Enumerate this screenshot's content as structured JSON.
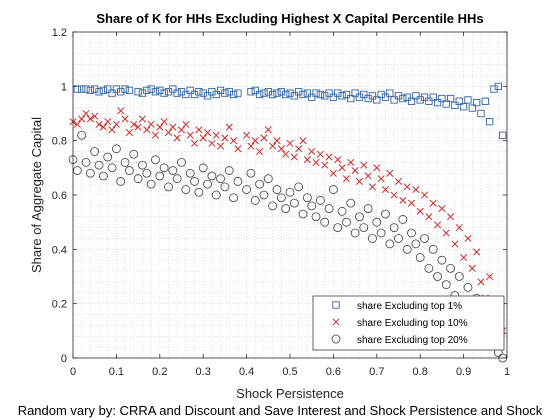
{
  "chart_data": {
    "type": "scatter",
    "title": "Share of K for HHs Excluding Highest X Capital Percentile HHs",
    "xlabel": "Shock Persistence",
    "ylabel": "Share of Aggregate Capital",
    "footnote": "Random vary by: CRRA and Discount and Save Interest and Shock Persistence and Shock",
    "xlim": [
      0,
      1
    ],
    "ylim": [
      0,
      1.2
    ],
    "x_ticks": [
      "0",
      "0.1",
      "0.2",
      "0.3",
      "0.4",
      "0.5",
      "0.6",
      "0.7",
      "0.8",
      "0.9",
      "1"
    ],
    "y_ticks": [
      "0",
      "0.2",
      "0.4",
      "0.6",
      "0.8",
      "1",
      "1.2"
    ],
    "grid": "minor dotted",
    "legend_position": "bottom-right",
    "series": [
      {
        "name": "share Excluding top 1%",
        "marker": "square",
        "color": "#3465a4",
        "points": [
          [
            0.01,
            0.99
          ],
          [
            0.02,
            0.99
          ],
          [
            0.03,
            0.99
          ],
          [
            0.04,
            0.985
          ],
          [
            0.05,
            0.99
          ],
          [
            0.06,
            0.98
          ],
          [
            0.07,
            0.985
          ],
          [
            0.08,
            0.99
          ],
          [
            0.09,
            0.975
          ],
          [
            0.1,
            0.99
          ],
          [
            0.11,
            0.98
          ],
          [
            0.12,
            0.99
          ],
          [
            0.13,
            0.985
          ],
          [
            0.15,
            0.98
          ],
          [
            0.16,
            0.975
          ],
          [
            0.17,
            0.985
          ],
          [
            0.18,
            0.99
          ],
          [
            0.19,
            0.98
          ],
          [
            0.2,
            0.985
          ],
          [
            0.21,
            0.975
          ],
          [
            0.22,
            0.98
          ],
          [
            0.23,
            0.99
          ],
          [
            0.24,
            0.975
          ],
          [
            0.25,
            0.98
          ],
          [
            0.26,
            0.97
          ],
          [
            0.27,
            0.985
          ],
          [
            0.28,
            0.97
          ],
          [
            0.29,
            0.98
          ],
          [
            0.3,
            0.975
          ],
          [
            0.31,
            0.965
          ],
          [
            0.32,
            0.98
          ],
          [
            0.33,
            0.97
          ],
          [
            0.34,
            0.985
          ],
          [
            0.35,
            0.975
          ],
          [
            0.36,
            0.98
          ],
          [
            0.37,
            0.97
          ],
          [
            0.38,
            0.975
          ],
          [
            0.41,
            0.98
          ],
          [
            0.42,
            0.985
          ],
          [
            0.43,
            0.97
          ],
          [
            0.44,
            0.975
          ],
          [
            0.45,
            0.98
          ],
          [
            0.46,
            0.97
          ],
          [
            0.47,
            0.975
          ],
          [
            0.48,
            0.98
          ],
          [
            0.49,
            0.97
          ],
          [
            0.5,
            0.975
          ],
          [
            0.51,
            0.965
          ],
          [
            0.52,
            0.98
          ],
          [
            0.53,
            0.97
          ],
          [
            0.54,
            0.975
          ],
          [
            0.55,
            0.96
          ],
          [
            0.56,
            0.975
          ],
          [
            0.57,
            0.97
          ],
          [
            0.58,
            0.965
          ],
          [
            0.59,
            0.975
          ],
          [
            0.6,
            0.96
          ],
          [
            0.61,
            0.975
          ],
          [
            0.62,
            0.965
          ],
          [
            0.63,
            0.97
          ],
          [
            0.64,
            0.955
          ],
          [
            0.65,
            0.975
          ],
          [
            0.66,
            0.96
          ],
          [
            0.67,
            0.97
          ],
          [
            0.68,
            0.955
          ],
          [
            0.69,
            0.965
          ],
          [
            0.7,
            0.95
          ],
          [
            0.71,
            0.97
          ],
          [
            0.72,
            0.96
          ],
          [
            0.73,
            0.975
          ],
          [
            0.74,
            0.95
          ],
          [
            0.75,
            0.965
          ],
          [
            0.76,
            0.955
          ],
          [
            0.77,
            0.96
          ],
          [
            0.78,
            0.945
          ],
          [
            0.79,
            0.965
          ],
          [
            0.8,
            0.95
          ],
          [
            0.81,
            0.96
          ],
          [
            0.82,
            0.945
          ],
          [
            0.83,
            0.96
          ],
          [
            0.84,
            0.94
          ],
          [
            0.85,
            0.955
          ],
          [
            0.86,
            0.935
          ],
          [
            0.87,
            0.955
          ],
          [
            0.88,
            0.93
          ],
          [
            0.89,
            0.945
          ],
          [
            0.9,
            0.925
          ],
          [
            0.91,
            0.95
          ],
          [
            0.92,
            0.92
          ],
          [
            0.93,
            0.94
          ],
          [
            0.94,
            0.9
          ],
          [
            0.95,
            0.945
          ],
          [
            0.96,
            0.87
          ],
          [
            0.97,
            0.99
          ],
          [
            0.98,
            1.0
          ],
          [
            0.99,
            0.82
          ]
        ]
      },
      {
        "name": "share Excluding top 10%",
        "marker": "x",
        "color": "#cc2a2a",
        "points": [
          [
            0.0,
            0.87
          ],
          [
            0.01,
            0.86
          ],
          [
            0.02,
            0.88
          ],
          [
            0.03,
            0.9
          ],
          [
            0.04,
            0.88
          ],
          [
            0.05,
            0.89
          ],
          [
            0.06,
            0.86
          ],
          [
            0.07,
            0.85
          ],
          [
            0.08,
            0.87
          ],
          [
            0.09,
            0.84
          ],
          [
            0.1,
            0.86
          ],
          [
            0.11,
            0.91
          ],
          [
            0.12,
            0.88
          ],
          [
            0.13,
            0.83
          ],
          [
            0.14,
            0.86
          ],
          [
            0.15,
            0.85
          ],
          [
            0.16,
            0.88
          ],
          [
            0.17,
            0.84
          ],
          [
            0.18,
            0.86
          ],
          [
            0.19,
            0.82
          ],
          [
            0.2,
            0.85
          ],
          [
            0.21,
            0.87
          ],
          [
            0.22,
            0.83
          ],
          [
            0.23,
            0.85
          ],
          [
            0.24,
            0.81
          ],
          [
            0.25,
            0.84
          ],
          [
            0.26,
            0.86
          ],
          [
            0.27,
            0.82
          ],
          [
            0.28,
            0.79
          ],
          [
            0.29,
            0.84
          ],
          [
            0.3,
            0.81
          ],
          [
            0.31,
            0.83
          ],
          [
            0.32,
            0.79
          ],
          [
            0.33,
            0.82
          ],
          [
            0.34,
            0.78
          ],
          [
            0.35,
            0.81
          ],
          [
            0.36,
            0.85
          ],
          [
            0.37,
            0.8
          ],
          [
            0.38,
            0.77
          ],
          [
            0.4,
            0.82
          ],
          [
            0.41,
            0.78
          ],
          [
            0.42,
            0.8
          ],
          [
            0.43,
            0.76
          ],
          [
            0.44,
            0.81
          ],
          [
            0.45,
            0.84
          ],
          [
            0.46,
            0.78
          ],
          [
            0.47,
            0.8
          ],
          [
            0.48,
            0.77
          ],
          [
            0.49,
            0.75
          ],
          [
            0.5,
            0.79
          ],
          [
            0.51,
            0.74
          ],
          [
            0.52,
            0.77
          ],
          [
            0.53,
            0.8
          ],
          [
            0.54,
            0.73
          ],
          [
            0.55,
            0.76
          ],
          [
            0.56,
            0.72
          ],
          [
            0.57,
            0.75
          ],
          [
            0.58,
            0.71
          ],
          [
            0.59,
            0.74
          ],
          [
            0.6,
            0.68
          ],
          [
            0.61,
            0.73
          ],
          [
            0.62,
            0.7
          ],
          [
            0.63,
            0.66
          ],
          [
            0.64,
            0.72
          ],
          [
            0.65,
            0.69
          ],
          [
            0.66,
            0.65
          ],
          [
            0.67,
            0.71
          ],
          [
            0.68,
            0.67
          ],
          [
            0.69,
            0.63
          ],
          [
            0.7,
            0.7
          ],
          [
            0.71,
            0.66
          ],
          [
            0.72,
            0.62
          ],
          [
            0.73,
            0.68
          ],
          [
            0.74,
            0.6
          ],
          [
            0.75,
            0.65
          ],
          [
            0.76,
            0.58
          ],
          [
            0.77,
            0.63
          ],
          [
            0.78,
            0.57
          ],
          [
            0.79,
            0.62
          ],
          [
            0.8,
            0.54
          ],
          [
            0.81,
            0.6
          ],
          [
            0.82,
            0.52
          ],
          [
            0.83,
            0.57
          ],
          [
            0.84,
            0.49
          ],
          [
            0.85,
            0.55
          ],
          [
            0.86,
            0.46
          ],
          [
            0.87,
            0.52
          ],
          [
            0.88,
            0.42
          ],
          [
            0.89,
            0.48
          ],
          [
            0.9,
            0.37
          ],
          [
            0.91,
            0.44
          ],
          [
            0.92,
            0.33
          ],
          [
            0.93,
            0.39
          ],
          [
            0.94,
            0.28
          ],
          [
            0.95,
            0.22
          ],
          [
            0.96,
            0.3
          ],
          [
            0.97,
            0.15
          ],
          [
            0.98,
            0.19
          ],
          [
            0.99,
            0.1
          ]
        ]
      },
      {
        "name": "share Excluding top 20%",
        "marker": "circle",
        "color": "#404040",
        "points": [
          [
            0.0,
            0.73
          ],
          [
            0.01,
            0.69
          ],
          [
            0.02,
            0.82
          ],
          [
            0.03,
            0.72
          ],
          [
            0.04,
            0.68
          ],
          [
            0.05,
            0.76
          ],
          [
            0.06,
            0.71
          ],
          [
            0.07,
            0.67
          ],
          [
            0.08,
            0.74
          ],
          [
            0.09,
            0.7
          ],
          [
            0.1,
            0.77
          ],
          [
            0.11,
            0.65
          ],
          [
            0.12,
            0.72
          ],
          [
            0.13,
            0.69
          ],
          [
            0.14,
            0.75
          ],
          [
            0.15,
            0.66
          ],
          [
            0.16,
            0.71
          ],
          [
            0.17,
            0.68
          ],
          [
            0.18,
            0.64
          ],
          [
            0.19,
            0.73
          ],
          [
            0.2,
            0.67
          ],
          [
            0.21,
            0.7
          ],
          [
            0.22,
            0.63
          ],
          [
            0.23,
            0.69
          ],
          [
            0.24,
            0.66
          ],
          [
            0.25,
            0.72
          ],
          [
            0.26,
            0.62
          ],
          [
            0.27,
            0.68
          ],
          [
            0.28,
            0.65
          ],
          [
            0.29,
            0.61
          ],
          [
            0.3,
            0.7
          ],
          [
            0.31,
            0.64
          ],
          [
            0.32,
            0.67
          ],
          [
            0.33,
            0.6
          ],
          [
            0.34,
            0.66
          ],
          [
            0.35,
            0.63
          ],
          [
            0.36,
            0.69
          ],
          [
            0.37,
            0.59
          ],
          [
            0.38,
            0.65
          ],
          [
            0.4,
            0.62
          ],
          [
            0.41,
            0.68
          ],
          [
            0.42,
            0.58
          ],
          [
            0.43,
            0.64
          ],
          [
            0.44,
            0.6
          ],
          [
            0.45,
            0.66
          ],
          [
            0.46,
            0.56
          ],
          [
            0.47,
            0.62
          ],
          [
            0.48,
            0.59
          ],
          [
            0.49,
            0.55
          ],
          [
            0.5,
            0.61
          ],
          [
            0.51,
            0.57
          ],
          [
            0.52,
            0.63
          ],
          [
            0.53,
            0.53
          ],
          [
            0.54,
            0.59
          ],
          [
            0.55,
            0.56
          ],
          [
            0.56,
            0.52
          ],
          [
            0.57,
            0.58
          ],
          [
            0.58,
            0.5
          ],
          [
            0.59,
            0.55
          ],
          [
            0.6,
            0.62
          ],
          [
            0.61,
            0.48
          ],
          [
            0.62,
            0.54
          ],
          [
            0.63,
            0.5
          ],
          [
            0.64,
            0.57
          ],
          [
            0.65,
            0.46
          ],
          [
            0.66,
            0.52
          ],
          [
            0.67,
            0.48
          ],
          [
            0.68,
            0.55
          ],
          [
            0.69,
            0.44
          ],
          [
            0.7,
            0.5
          ],
          [
            0.71,
            0.46
          ],
          [
            0.72,
            0.53
          ],
          [
            0.73,
            0.42
          ],
          [
            0.74,
            0.48
          ],
          [
            0.75,
            0.44
          ],
          [
            0.76,
            0.51
          ],
          [
            0.77,
            0.4
          ],
          [
            0.78,
            0.46
          ],
          [
            0.79,
            0.42
          ],
          [
            0.8,
            0.37
          ],
          [
            0.81,
            0.44
          ],
          [
            0.82,
            0.33
          ],
          [
            0.83,
            0.4
          ],
          [
            0.84,
            0.3
          ],
          [
            0.85,
            0.36
          ],
          [
            0.86,
            0.27
          ],
          [
            0.87,
            0.33
          ],
          [
            0.88,
            0.23
          ],
          [
            0.89,
            0.3
          ],
          [
            0.9,
            0.2
          ],
          [
            0.91,
            0.26
          ],
          [
            0.92,
            0.16
          ],
          [
            0.93,
            0.22
          ],
          [
            0.94,
            0.12
          ],
          [
            0.95,
            0.08
          ],
          [
            0.96,
            0.18
          ],
          [
            0.97,
            0.05
          ],
          [
            0.98,
            0.02
          ],
          [
            0.99,
            0.0
          ]
        ]
      }
    ]
  }
}
